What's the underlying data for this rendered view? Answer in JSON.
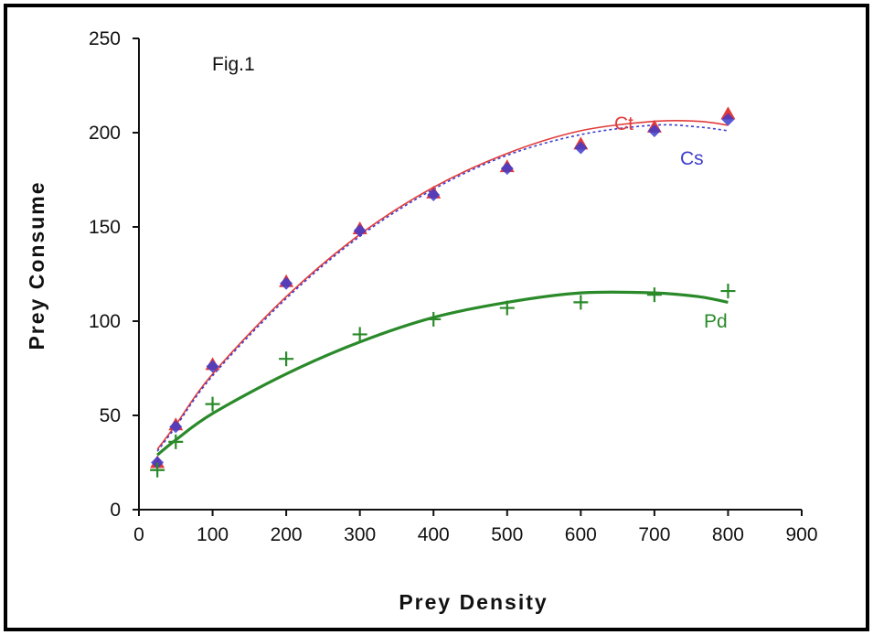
{
  "chart_data": {
    "type": "scatter",
    "title": "",
    "annotation": "Fig.1",
    "xlabel": "Prey Density",
    "ylabel": "Prey Consume",
    "xlim": [
      0,
      900
    ],
    "ylim": [
      0,
      250
    ],
    "x_ticks": [
      0,
      100,
      200,
      300,
      400,
      500,
      600,
      700,
      800,
      900
    ],
    "y_ticks": [
      0,
      50,
      100,
      150,
      200,
      250
    ],
    "grid": false,
    "legend": "none",
    "series": [
      {
        "name": "Ct",
        "color": "#e23b3b",
        "marker": "triangle",
        "points": [
          {
            "x": 25,
            "y": 25
          },
          {
            "x": 50,
            "y": 45
          },
          {
            "x": 100,
            "y": 77
          },
          {
            "x": 200,
            "y": 121
          },
          {
            "x": 300,
            "y": 149
          },
          {
            "x": 400,
            "y": 168
          },
          {
            "x": 500,
            "y": 182
          },
          {
            "x": 600,
            "y": 194
          },
          {
            "x": 700,
            "y": 203
          },
          {
            "x": 800,
            "y": 210
          }
        ],
        "fit": [
          {
            "x": 25,
            "y": 32
          },
          {
            "x": 50,
            "y": 45
          },
          {
            "x": 100,
            "y": 72
          },
          {
            "x": 200,
            "y": 113
          },
          {
            "x": 300,
            "y": 146
          },
          {
            "x": 400,
            "y": 171
          },
          {
            "x": 500,
            "y": 189
          },
          {
            "x": 600,
            "y": 201
          },
          {
            "x": 700,
            "y": 206
          },
          {
            "x": 760,
            "y": 206
          },
          {
            "x": 800,
            "y": 204
          }
        ]
      },
      {
        "name": "Cs",
        "color": "#3d3dcc",
        "marker": "diamond",
        "points": [
          {
            "x": 25,
            "y": 25
          },
          {
            "x": 50,
            "y": 44
          },
          {
            "x": 100,
            "y": 76
          },
          {
            "x": 200,
            "y": 120
          },
          {
            "x": 300,
            "y": 148
          },
          {
            "x": 400,
            "y": 167
          },
          {
            "x": 500,
            "y": 181
          },
          {
            "x": 600,
            "y": 192
          },
          {
            "x": 700,
            "y": 201
          },
          {
            "x": 800,
            "y": 207
          }
        ],
        "fit": [
          {
            "x": 25,
            "y": 31
          },
          {
            "x": 50,
            "y": 44
          },
          {
            "x": 100,
            "y": 71
          },
          {
            "x": 200,
            "y": 112
          },
          {
            "x": 300,
            "y": 145
          },
          {
            "x": 400,
            "y": 170
          },
          {
            "x": 500,
            "y": 188
          },
          {
            "x": 600,
            "y": 199
          },
          {
            "x": 700,
            "y": 204
          },
          {
            "x": 760,
            "y": 203
          },
          {
            "x": 800,
            "y": 201
          }
        ]
      },
      {
        "name": "Pd",
        "color": "#2a8a2a",
        "marker": "plus",
        "points": [
          {
            "x": 25,
            "y": 21
          },
          {
            "x": 50,
            "y": 36
          },
          {
            "x": 100,
            "y": 56
          },
          {
            "x": 200,
            "y": 80
          },
          {
            "x": 300,
            "y": 93
          },
          {
            "x": 400,
            "y": 101
          },
          {
            "x": 500,
            "y": 107
          },
          {
            "x": 600,
            "y": 110
          },
          {
            "x": 700,
            "y": 114
          },
          {
            "x": 800,
            "y": 116
          }
        ],
        "fit": [
          {
            "x": 25,
            "y": 29
          },
          {
            "x": 50,
            "y": 37
          },
          {
            "x": 100,
            "y": 51
          },
          {
            "x": 200,
            "y": 72
          },
          {
            "x": 300,
            "y": 89
          },
          {
            "x": 400,
            "y": 102
          },
          {
            "x": 500,
            "y": 110
          },
          {
            "x": 600,
            "y": 115
          },
          {
            "x": 700,
            "y": 115
          },
          {
            "x": 760,
            "y": 113
          },
          {
            "x": 800,
            "y": 110
          }
        ]
      }
    ]
  }
}
